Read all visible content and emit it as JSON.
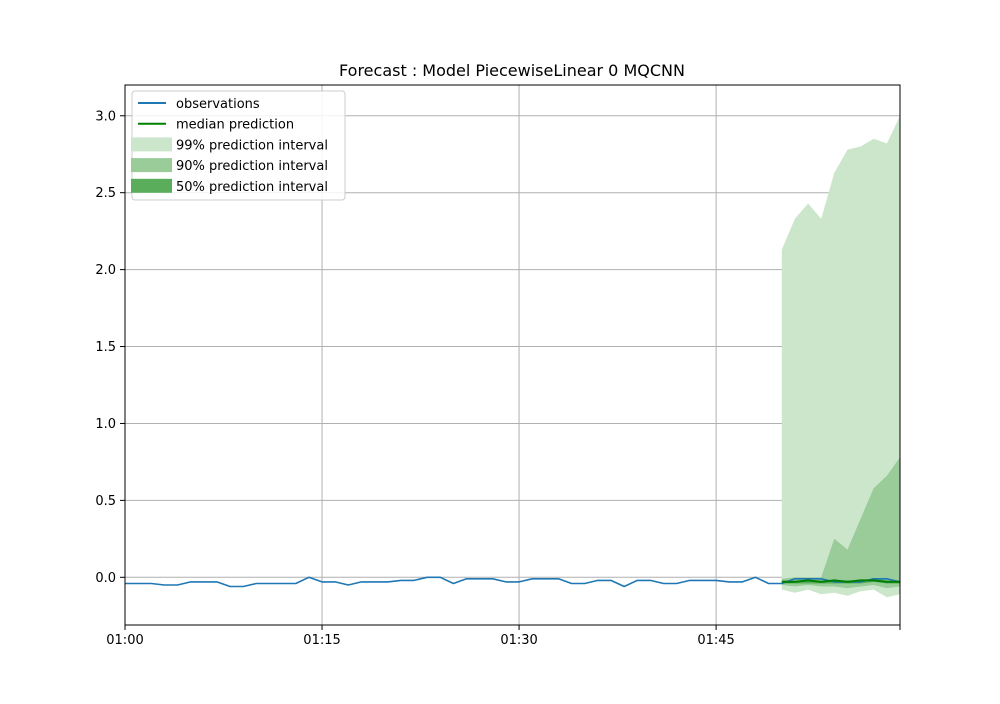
{
  "chart_data": {
    "type": "line",
    "title": "Forecast : Model PiecewiseLinear 0 MQCNN",
    "xlabel": "",
    "ylabel": "",
    "x_unit": "minute",
    "xlim": [
      "01:00",
      "01:59"
    ],
    "ylim": [
      -0.31,
      3.2
    ],
    "x_ticks": [
      "01:00",
      "01:15",
      "01:30",
      "01:45"
    ],
    "y_ticks": [
      "0.0",
      "0.5",
      "1.0",
      "1.5",
      "2.0",
      "2.5",
      "3.0"
    ],
    "grid": true,
    "legend_position": "upper-left",
    "colors": {
      "observations": "#1f77b4",
      "median": "#008000",
      "interval_99": "#cce6cc",
      "interval_90": "#99cc99",
      "interval_50": "#5aad5a",
      "grid": "#b0b0b0"
    },
    "legend": [
      {
        "label": "observations",
        "kind": "line",
        "color": "#1f77b4"
      },
      {
        "label": "median prediction",
        "kind": "line",
        "color": "#008000"
      },
      {
        "label": "99% prediction interval",
        "kind": "patch",
        "color": "#cce6cc"
      },
      {
        "label": "90% prediction interval",
        "kind": "patch",
        "color": "#99cc99"
      },
      {
        "label": "50% prediction interval",
        "kind": "patch",
        "color": "#5aad5a"
      }
    ],
    "observations": {
      "name": "observations",
      "x": [
        "01:00",
        "01:01",
        "01:02",
        "01:03",
        "01:04",
        "01:05",
        "01:06",
        "01:07",
        "01:08",
        "01:09",
        "01:10",
        "01:11",
        "01:12",
        "01:13",
        "01:14",
        "01:15",
        "01:16",
        "01:17",
        "01:18",
        "01:19",
        "01:20",
        "01:21",
        "01:22",
        "01:23",
        "01:24",
        "01:25",
        "01:26",
        "01:27",
        "01:28",
        "01:29",
        "01:30",
        "01:31",
        "01:32",
        "01:33",
        "01:34",
        "01:35",
        "01:36",
        "01:37",
        "01:38",
        "01:39",
        "01:40",
        "01:41",
        "01:42",
        "01:43",
        "01:44",
        "01:45",
        "01:46",
        "01:47",
        "01:48",
        "01:49",
        "01:50",
        "01:51",
        "01:52",
        "01:53",
        "01:54",
        "01:55",
        "01:56",
        "01:57",
        "01:58",
        "01:59"
      ],
      "y": [
        -0.04,
        -0.04,
        -0.04,
        -0.05,
        -0.05,
        -0.03,
        -0.03,
        -0.03,
        -0.06,
        -0.06,
        -0.04,
        -0.04,
        -0.04,
        -0.04,
        0.0,
        -0.03,
        -0.03,
        -0.05,
        -0.03,
        -0.03,
        -0.03,
        -0.02,
        -0.02,
        0.0,
        0.0,
        -0.04,
        -0.01,
        -0.01,
        -0.01,
        -0.03,
        -0.03,
        -0.01,
        -0.01,
        -0.01,
        -0.04,
        -0.04,
        -0.02,
        -0.02,
        -0.06,
        -0.02,
        -0.02,
        -0.04,
        -0.04,
        -0.02,
        -0.02,
        -0.02,
        -0.03,
        -0.03,
        0.0,
        -0.04,
        -0.04,
        -0.01,
        -0.01,
        -0.01,
        -0.03,
        -0.03,
        -0.03,
        -0.01,
        -0.01,
        -0.03
      ]
    },
    "median": {
      "name": "median prediction",
      "x": [
        "01:50",
        "01:51",
        "01:52",
        "01:53",
        "01:54",
        "01:55",
        "01:56",
        "01:57",
        "01:58",
        "01:59"
      ],
      "y": [
        -0.03,
        -0.03,
        -0.02,
        -0.03,
        -0.02,
        -0.03,
        -0.02,
        -0.02,
        -0.03,
        -0.03
      ]
    },
    "intervals": [
      {
        "name": "99% prediction interval",
        "x": [
          "01:50",
          "01:51",
          "01:52",
          "01:53",
          "01:54",
          "01:55",
          "01:56",
          "01:57",
          "01:58",
          "01:59"
        ],
        "lower": [
          -0.08,
          -0.1,
          -0.08,
          -0.11,
          -0.1,
          -0.12,
          -0.09,
          -0.08,
          -0.13,
          -0.11
        ],
        "upper": [
          2.13,
          2.33,
          2.43,
          2.33,
          2.63,
          2.78,
          2.8,
          2.85,
          2.82,
          3.0
        ]
      },
      {
        "name": "90% prediction interval",
        "x": [
          "01:50",
          "01:51",
          "01:52",
          "01:53",
          "01:54",
          "01:55",
          "01:56",
          "01:57",
          "01:58",
          "01:59"
        ],
        "lower": [
          -0.05,
          -0.06,
          -0.05,
          -0.06,
          -0.06,
          -0.07,
          -0.06,
          -0.05,
          -0.07,
          -0.06
        ],
        "upper": [
          -0.01,
          0.0,
          0.0,
          0.0,
          0.25,
          0.18,
          0.38,
          0.58,
          0.66,
          0.78
        ]
      },
      {
        "name": "50% prediction interval",
        "x": [
          "01:50",
          "01:51",
          "01:52",
          "01:53",
          "01:54",
          "01:55",
          "01:56",
          "01:57",
          "01:58",
          "01:59"
        ],
        "lower": [
          -0.04,
          -0.04,
          -0.04,
          -0.04,
          -0.04,
          -0.04,
          -0.04,
          -0.03,
          -0.04,
          -0.04
        ],
        "upper": [
          -0.02,
          -0.02,
          -0.02,
          -0.02,
          -0.02,
          -0.02,
          -0.02,
          -0.01,
          -0.02,
          -0.02
        ]
      }
    ]
  }
}
